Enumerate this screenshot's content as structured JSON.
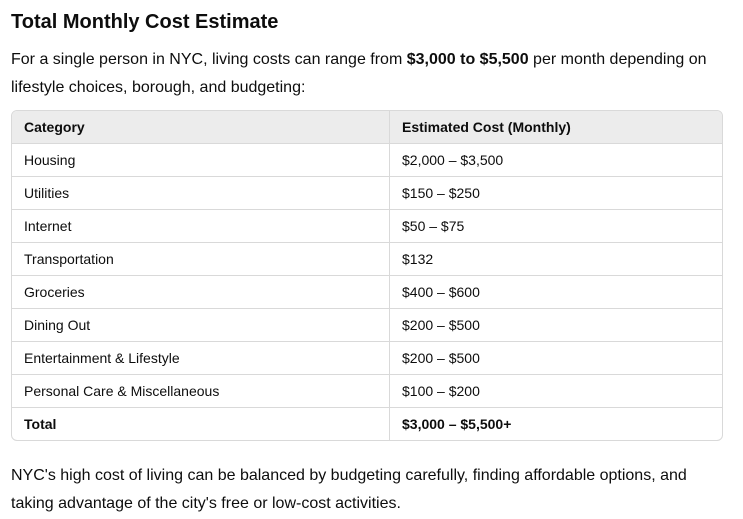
{
  "section": {
    "heading": "Total Monthly Cost Estimate",
    "intro": {
      "before": "For a single person in NYC, living costs can range from ",
      "highlight": "$3,000 to $5,500",
      "after": " per month depending on lifestyle choices, borough, and budgeting:"
    },
    "outro": "NYC's high cost of living can be balanced by budgeting carefully, finding affordable options, and taking advantage of the city's free or low-cost activities."
  },
  "table": {
    "headers": [
      "Category",
      "Estimated Cost (Monthly)"
    ],
    "rows": [
      [
        "Housing",
        "$2,000 – $3,500"
      ],
      [
        "Utilities",
        "$150 – $250"
      ],
      [
        "Internet",
        "$50 – $75"
      ],
      [
        "Transportation",
        "$132"
      ],
      [
        "Groceries",
        "$400 – $600"
      ],
      [
        "Dining Out",
        "$200 – $500"
      ],
      [
        "Entertainment & Lifestyle",
        "$200 – $500"
      ],
      [
        "Personal Care & Miscellaneous",
        "$100 – $200"
      ],
      [
        "Total",
        "$3,000 – $5,500+"
      ]
    ]
  }
}
